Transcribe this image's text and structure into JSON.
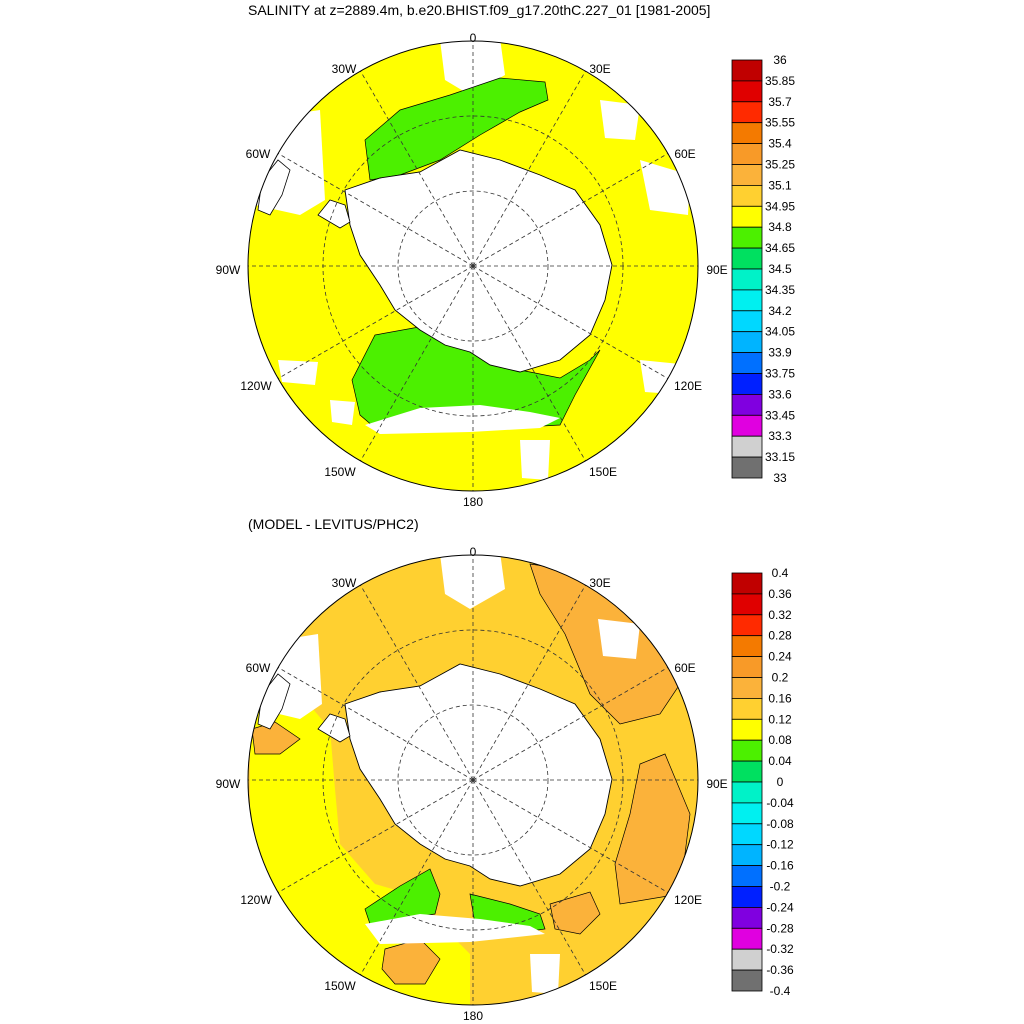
{
  "title": "SALINITY at z=2889.4m, b.e20.BHIST.f09_g17.20thC.227_01 [1981-2005]",
  "subtitle": "(MODEL - LEVITUS/PHC2)",
  "longitude_labels": {
    "n": "0",
    "nne": "30E",
    "ene": "60E",
    "e": "90E",
    "ese": "120E",
    "sse": "150E",
    "s": "180",
    "ssw": "150W",
    "wsw": "120W",
    "w": "90W",
    "wnw": "60W",
    "nnw": "30W"
  },
  "colorbar_top": {
    "labels": [
      "36",
      "35.85",
      "35.7",
      "35.55",
      "35.4",
      "35.25",
      "35.1",
      "34.95",
      "34.8",
      "34.65",
      "34.5",
      "34.35",
      "34.2",
      "34.05",
      "33.9",
      "33.75",
      "33.6",
      "33.45",
      "33.3",
      "33.15",
      "33"
    ],
    "colors": [
      "#c00000",
      "#e00000",
      "#ff2a00",
      "#f47a00",
      "#f89a28",
      "#fbb23a",
      "#ffd030",
      "#ffff00",
      "#4cf000",
      "#00e060",
      "#00f2c8",
      "#00f0f0",
      "#00d8ff",
      "#00b4ff",
      "#0070ff",
      "#0020ff",
      "#8000e0",
      "#e000e0",
      "#d0d0d0",
      "#707070"
    ]
  },
  "colorbar_bottom": {
    "labels": [
      "0.4",
      "0.36",
      "0.32",
      "0.28",
      "0.24",
      "0.2",
      "0.16",
      "0.12",
      "0.08",
      "0.04",
      "0",
      "-0.04",
      "-0.08",
      "-0.12",
      "-0.16",
      "-0.2",
      "-0.24",
      "-0.28",
      "-0.32",
      "-0.36",
      "-0.4"
    ],
    "colors": [
      "#c00000",
      "#e00000",
      "#ff2a00",
      "#f47a00",
      "#f89a28",
      "#fbb23a",
      "#ffd030",
      "#ffff00",
      "#4cf000",
      "#00e060",
      "#00f2c8",
      "#00f0f0",
      "#00d8ff",
      "#00b4ff",
      "#0070ff",
      "#0020ff",
      "#8000e0",
      "#e000e0",
      "#d0d0d0",
      "#707070"
    ]
  },
  "map_colors": {
    "top_fill": "#ffff00",
    "top_patch": "#4cf000",
    "bottom_fill": "#ffff00",
    "bottom_orange_light": "#ffd030",
    "bottom_orange": "#fbb23a",
    "bottom_green": "#4cf000",
    "land": "#ffffff"
  }
}
